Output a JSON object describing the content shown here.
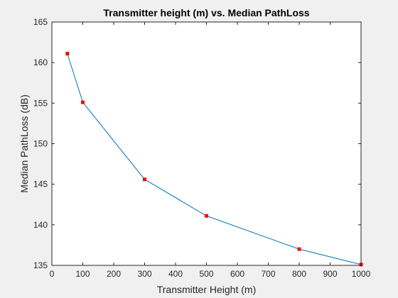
{
  "chart_data": {
    "type": "line",
    "title": "Transmitter height (m) vs. Median PathLoss",
    "xlabel": "Transmitter Height (m)",
    "ylabel": "Median PathLoss (dB)",
    "xlim": [
      0,
      1000
    ],
    "ylim": [
      135,
      165
    ],
    "xticks": [
      0,
      100,
      200,
      300,
      400,
      500,
      600,
      700,
      800,
      900,
      1000
    ],
    "yticks": [
      135,
      140,
      145,
      150,
      155,
      160,
      165
    ],
    "grid": false,
    "legend": "none",
    "series": [
      {
        "x": [
          50,
          100,
          300,
          500,
          800,
          1000
        ],
        "y": [
          161.1,
          155.1,
          145.6,
          141.1,
          137.0,
          135.1
        ],
        "line_color": "#0072BD",
        "marker": "square",
        "marker_color": "#FF0000"
      }
    ]
  },
  "colors": {
    "figure_background": "#f0f0f0",
    "axes_background": "#ffffff",
    "axes_color": "#262626"
  }
}
